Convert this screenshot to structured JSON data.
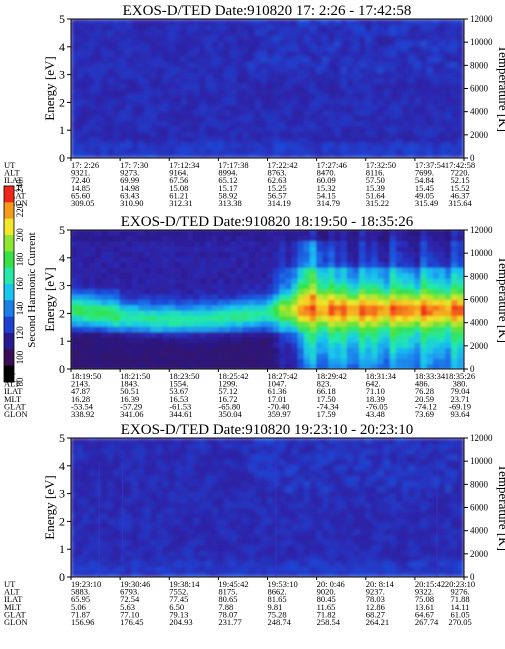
{
  "figure": {
    "energy_label": "Energy [eV]",
    "temperature_label": "Temperature [K]",
    "colorbar_label": "Second Harmonic Current",
    "colorbar_ticks": [
      "80",
      "100",
      "120",
      "140",
      "160",
      "180",
      "200",
      "220",
      "240"
    ],
    "colorbar_colors": [
      "#000000",
      "#3a0e55",
      "#2a1a8f",
      "#1f3fd0",
      "#1c7fe6",
      "#19c6ef",
      "#24e9a8",
      "#36e246",
      "#8fe632",
      "#f4e62a",
      "#f59a1c",
      "#f0261c"
    ]
  },
  "chart_data": [
    {
      "type": "heatmap",
      "title": "EXOS-D/TED   Date:910820  17: 2:26 - 17:42:58",
      "ylabel": "Energy [eV]",
      "ylabel_right": "Temperature [K]",
      "ylim": [
        0,
        5
      ],
      "ylim_right": [
        0,
        12000
      ],
      "y_ticks": [
        "0",
        "1",
        "2",
        "3",
        "4",
        "5"
      ],
      "y_ticks_right": [
        "0",
        "2000",
        "4000",
        "6000",
        "8000",
        "10000",
        "12000"
      ],
      "intensity": "low, nearly uniform (~125) with faint variations above 3 eV toward later times",
      "rows": {
        "UT": [
          "17: 2:26",
          "17: 7:30",
          "17:12:34",
          "17:17:38",
          "17:22:42",
          "17:27:46",
          "17:32:50",
          "17:37:54",
          "17:42:58"
        ],
        "ALT": [
          "9321.",
          "9273.",
          "9164.",
          "8994.",
          "8763.",
          "8470.",
          "8116.",
          "7699.",
          "7220."
        ],
        "ILAT": [
          "72.40",
          "69.99",
          "67.56",
          "65.12",
          "62.63",
          "60.09",
          "57.50",
          "54.84",
          "52.15"
        ],
        "MLT": [
          "14.85",
          "14.98",
          "15.08",
          "15.17",
          "15.25",
          "15.32",
          "15.39",
          "15.45",
          "15.52"
        ],
        "GLAT": [
          "65.60",
          "63.43",
          "61.21",
          "58.92",
          "56.57",
          "54.15",
          "51.64",
          "49.05",
          "46.37"
        ],
        "GLON": [
          "309.05",
          "310.90",
          "312.31",
          "313.38",
          "314.19",
          "314.79",
          "315.22",
          "315.49",
          "315.64"
        ]
      }
    },
    {
      "type": "heatmap",
      "title": "EXOS-D/TED   Date:910820  18:19:50 - 18:35:26",
      "ylabel": "Energy [eV]",
      "ylabel_right": "Temperature [K]",
      "ylim": [
        0,
        5
      ],
      "ylim_right": [
        0,
        12000
      ],
      "y_ticks": [
        "0",
        "1",
        "2",
        "3",
        "4",
        "5"
      ],
      "y_ticks_right": [
        "0",
        "2000",
        "4000",
        "6000",
        "8000",
        "10000",
        "12000"
      ],
      "intensity": "bright cyan/green band between ~1.5 and 3 eV, intensifying after 18:29 to fill 0-3.5 eV (up to ~190)",
      "rows": {
        "UT": [
          "18:19:50",
          "18:21:50",
          "18:23:50",
          "18:25:42",
          "18:27:42",
          "18:29:42",
          "18:31:34",
          "18:33:34",
          "18:35:26"
        ],
        "ALT": [
          "2143.",
          "1843.",
          "1554.",
          "1299.",
          "1047.",
          "823.",
          "642.",
          "486.",
          "380."
        ],
        "ILAT": [
          "47.87",
          "50.51",
          "53.67",
          "57.12",
          "61.36",
          "66.18",
          "71.10",
          "76.28",
          "79.04"
        ],
        "MLT": [
          "16.28",
          "16.39",
          "16.53",
          "16.72",
          "17.01",
          "17.50",
          "18.39",
          "20.59",
          "23.71"
        ],
        "GLAT": [
          "-53.54",
          "-57.29",
          "-61.53",
          "-65.80",
          "-70.40",
          "-74.34",
          "-76.05",
          "-74.12",
          "-69.19"
        ],
        "GLON": [
          "338.92",
          "341.06",
          "344.61",
          "350.04",
          "359.97",
          "17.59",
          "43.48",
          "73.69",
          "93.64"
        ]
      }
    },
    {
      "type": "heatmap",
      "title": "EXOS-D/TED   Date:910820  19:23:10 - 20:23:10",
      "ylabel": "Energy [eV]",
      "ylabel_right": "Temperature [K]",
      "ylim": [
        0,
        5
      ],
      "ylim_right": [
        0,
        12000
      ],
      "y_ticks": [
        "0",
        "1",
        "2",
        "3",
        "4",
        "5"
      ],
      "y_ticks_right": [
        "0",
        "2000",
        "4000",
        "6000",
        "8000",
        "10000",
        "12000"
      ],
      "intensity": "low, nearly uniform (~125) with a few faint vertical streaks",
      "rows": {
        "UT": [
          "19:23:10",
          "19:30:46",
          "19:38:14",
          "19:45:42",
          "19:53:10",
          "20: 0:46",
          "20: 8:14",
          "20:15:42",
          "20:23:10"
        ],
        "ALT": [
          "5883.",
          "6793.",
          "7552.",
          "8175.",
          "8662.",
          "9020.",
          "9237.",
          "9322.",
          "9276."
        ],
        "ILAT": [
          "65.95",
          "72.54",
          "77.45",
          "80.65",
          "81.65",
          "80.45",
          "78.03",
          "75.08",
          "71.88"
        ],
        "MLT": [
          "5.06",
          "5.63",
          "6.50",
          "7.88",
          "9.81",
          "11.65",
          "12.86",
          "13.61",
          "14.11"
        ],
        "GLAT": [
          "71.87",
          "77.10",
          "79.13",
          "78.07",
          "75.28",
          "71.82",
          "68.27",
          "64.67",
          "61.05"
        ],
        "GLON": [
          "156.96",
          "176.45",
          "204.93",
          "231.77",
          "248.74",
          "258.54",
          "264.21",
          "267.74",
          "270.05"
        ]
      }
    }
  ]
}
